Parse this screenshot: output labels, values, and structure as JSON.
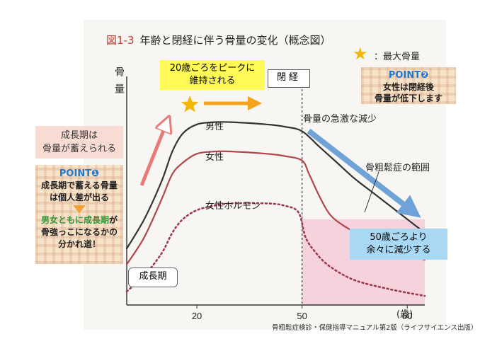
{
  "figure": {
    "title_prefix": "図1-3",
    "title": "年齢と閉経に伴う骨量の変化（概念図）",
    "legend_star_label": "：最大骨量",
    "source": "骨粗鬆症検診・保健指導マニュアル第2版（ライフサイエンス出版）"
  },
  "annotations": {
    "maintained": "20歳ごろをピークに\n維持される",
    "menopause": "閉経",
    "growth_stores": "成長期は\n骨量が蓄えられる",
    "rapid_decrease": "骨量の急激な減少",
    "osteoporosis_range": "骨粗鬆症の範囲",
    "gradual_decrease": "50歳ごろより\n余々に減少する",
    "growth_period": "成長期"
  },
  "point1": {
    "heading": "POINT❶",
    "line1": "成長期で蓄える骨量",
    "line2": "は個人差が出る",
    "line3_green": "男女ともに成長期",
    "line3_rest": "が",
    "line4": "骨強っこになるかの",
    "line5": "分かれ道！"
  },
  "point2": {
    "heading": "POINT❷",
    "line1": "女性は閉経後",
    "line2": "骨量が低下します"
  },
  "colors": {
    "male_line": "#333333",
    "female_line": "#b0464e",
    "hormone_line": "#9b3a4a",
    "osteoporosis_zone": "#f6d3dc",
    "up_arrow": "#e97a7a",
    "peak_arrow": "#f5a21f",
    "decline_arrow": "#6fa3d8",
    "star": "#f2b705"
  },
  "chart_data": {
    "type": "line",
    "title": "年齢と閉経に伴う骨量の変化（概念図）",
    "xlabel": "(歳)",
    "ylabel": "骨量",
    "xlim": [
      0,
      85
    ],
    "ylim": [
      0,
      100
    ],
    "x_ticks": [
      20,
      50,
      80
    ],
    "x_tick_labels": [
      "20",
      "50",
      "80"
    ],
    "x_unit_label": "(歳)",
    "y_ticks": [],
    "menopause_age": 50,
    "osteoporosis_threshold": 38,
    "peak_marker_age": 18,
    "series": [
      {
        "name": "男性",
        "style": "solid",
        "x": [
          0,
          5,
          10,
          13,
          16,
          20,
          25,
          30,
          40,
          45,
          50,
          55,
          60,
          65,
          70,
          75,
          80,
          85
        ],
        "y": [
          25,
          38,
          55,
          68,
          76,
          80,
          81,
          81,
          80,
          79,
          77,
          70,
          63,
          56,
          50,
          44,
          38,
          32
        ]
      },
      {
        "name": "女性",
        "style": "solid",
        "x": [
          0,
          5,
          10,
          13,
          16,
          20,
          25,
          30,
          40,
          45,
          50,
          52,
          55,
          58,
          62,
          68,
          75,
          85
        ],
        "y": [
          18,
          30,
          47,
          58,
          63,
          67,
          68,
          68,
          67,
          66,
          64,
          58,
          48,
          40,
          35,
          30,
          25,
          20
        ]
      },
      {
        "name": "女性ホルモン",
        "style": "dotted",
        "x": [
          0,
          5,
          10,
          13,
          16,
          20,
          25,
          30,
          40,
          45,
          49,
          51,
          54,
          58,
          65,
          75,
          85
        ],
        "y": [
          6,
          13,
          23,
          32,
          38,
          42,
          44,
          45,
          45,
          44,
          41,
          30,
          23,
          17,
          11,
          7,
          4
        ]
      }
    ]
  }
}
